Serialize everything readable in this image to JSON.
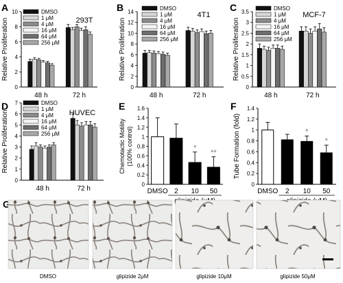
{
  "legend_labels": [
    "DMSO",
    "1 μM",
    "4 μM",
    "16 μM",
    "64 μM",
    "256 μM"
  ],
  "dose_colors": [
    "#111111",
    "#d6d6d6",
    "#8c8c8c",
    "#f5f5f5",
    "#6e6e6e",
    "#a8a8a8"
  ],
  "chart_data": [
    {
      "panel": "A",
      "type": "bar",
      "title": "293T",
      "ylabel": "Relative Proliferation",
      "categories": [
        "48 h",
        "72 h"
      ],
      "ylim": [
        0,
        10
      ],
      "yticks": [
        0,
        2,
        4,
        6,
        8,
        10
      ],
      "series": [
        {
          "name": "DMSO",
          "values": [
            3.4,
            7.9
          ],
          "errors": [
            0.3,
            0.4
          ]
        },
        {
          "name": "1 μM",
          "values": [
            3.7,
            7.6
          ],
          "errors": [
            0.2,
            0.3
          ]
        },
        {
          "name": "4 μM",
          "values": [
            3.6,
            8.0
          ],
          "errors": [
            0.2,
            0.3
          ]
        },
        {
          "name": "16 μM",
          "values": [
            3.3,
            7.5
          ],
          "errors": [
            0.2,
            0.3
          ]
        },
        {
          "name": "64 μM",
          "values": [
            3.2,
            7.6
          ],
          "errors": [
            0.2,
            0.4
          ]
        },
        {
          "name": "256 μM",
          "values": [
            2.9,
            7.0
          ],
          "errors": [
            0.2,
            0.3
          ]
        }
      ]
    },
    {
      "panel": "B",
      "type": "bar",
      "title": "4T1",
      "ylabel": "Relative Proliferation",
      "categories": [
        "48 h",
        "72 h"
      ],
      "ylim": [
        0,
        14
      ],
      "yticks": [
        0,
        2,
        4,
        6,
        8,
        10,
        12,
        14
      ],
      "series": [
        {
          "name": "DMSO",
          "values": [
            6.3,
            10.5
          ],
          "errors": [
            0.5,
            0.6
          ]
        },
        {
          "name": "1 μM",
          "values": [
            6.4,
            10.4
          ],
          "errors": [
            0.4,
            0.5
          ]
        },
        {
          "name": "4 μM",
          "values": [
            6.3,
            10.1
          ],
          "errors": [
            0.4,
            0.5
          ]
        },
        {
          "name": "16 μM",
          "values": [
            6.2,
            10.3
          ],
          "errors": [
            0.4,
            0.5
          ]
        },
        {
          "name": "64 μM",
          "values": [
            6.1,
            9.9
          ],
          "errors": [
            0.4,
            0.5
          ]
        },
        {
          "name": "256 μM",
          "values": [
            5.9,
            10.0
          ],
          "errors": [
            0.4,
            0.5
          ]
        }
      ]
    },
    {
      "panel": "C",
      "type": "bar",
      "title": "MCF-7",
      "ylabel": "Relative Proliferation",
      "categories": [
        "48 h",
        "72 h"
      ],
      "ylim": [
        0,
        3.5
      ],
      "yticks": [
        0,
        0.5,
        1,
        1.5,
        2,
        2.5,
        3,
        3.5
      ],
      "series": [
        {
          "name": "DMSO",
          "values": [
            1.8,
            2.6
          ],
          "errors": [
            0.2,
            0.2
          ]
        },
        {
          "name": "1 μM",
          "values": [
            1.75,
            2.6
          ],
          "errors": [
            0.15,
            0.2
          ]
        },
        {
          "name": "4 μM",
          "values": [
            1.7,
            2.5
          ],
          "errors": [
            0.15,
            0.2
          ]
        },
        {
          "name": "16 μM",
          "values": [
            1.8,
            2.6
          ],
          "errors": [
            0.15,
            0.2
          ]
        },
        {
          "name": "64 μM",
          "values": [
            1.8,
            2.7
          ],
          "errors": [
            0.15,
            0.25
          ]
        },
        {
          "name": "256 μM",
          "values": [
            1.75,
            2.55
          ],
          "errors": [
            0.15,
            0.2
          ]
        }
      ]
    },
    {
      "panel": "D",
      "type": "bar",
      "title": "HUVEC",
      "ylabel": "Relative Proliferation",
      "categories": [
        "48 h",
        "72 h"
      ],
      "ylim": [
        0,
        7
      ],
      "yticks": [
        0,
        1,
        2,
        3,
        4,
        5,
        6,
        7
      ],
      "series": [
        {
          "name": "DMSO",
          "values": [
            2.8,
            5.6
          ],
          "errors": [
            0.3,
            0.4
          ]
        },
        {
          "name": "1 μM",
          "values": [
            3.1,
            5.0
          ],
          "errors": [
            0.3,
            0.4
          ]
        },
        {
          "name": "4 μM",
          "values": [
            3.0,
            4.9
          ],
          "errors": [
            0.2,
            0.3
          ]
        },
        {
          "name": "16 μM",
          "values": [
            2.9,
            5.0
          ],
          "errors": [
            0.2,
            0.3
          ]
        },
        {
          "name": "64 μM",
          "values": [
            3.0,
            5.0
          ],
          "errors": [
            0.2,
            0.3
          ]
        },
        {
          "name": "256 μM",
          "values": [
            3.2,
            4.8
          ],
          "errors": [
            0.2,
            0.3
          ]
        }
      ]
    },
    {
      "panel": "E",
      "type": "bar",
      "title": "",
      "ylabel": "Chemotactic Motility (100% control)",
      "xlabel": "glipizide (μM)",
      "categories": [
        "DMSO",
        "2",
        "10",
        "50"
      ],
      "values": [
        1.0,
        0.97,
        0.46,
        0.36
      ],
      "errors": [
        0.4,
        0.3,
        0.22,
        0.22
      ],
      "fills": [
        "#ffffff",
        "#000000",
        "#000000",
        "#000000"
      ],
      "significance": [
        "",
        "",
        "*",
        "**"
      ],
      "ylim": [
        0,
        1.6
      ],
      "yticks": [
        0,
        0.2,
        0.4,
        0.6,
        0.8,
        1.0,
        1.2,
        1.4,
        1.6
      ]
    },
    {
      "panel": "F",
      "type": "bar",
      "title": "",
      "ylabel": "Tube Formation (fold)",
      "xlabel": "glipizide (μM)",
      "categories": [
        "DMSO",
        "2",
        "10",
        "50"
      ],
      "values": [
        1.0,
        0.82,
        0.79,
        0.58
      ],
      "errors": [
        0.14,
        0.1,
        0.1,
        0.14
      ],
      "fills": [
        "#ffffff",
        "#000000",
        "#000000",
        "#000000"
      ],
      "significance": [
        "",
        "",
        "*",
        "*"
      ],
      "ylim": [
        0,
        1.4
      ],
      "yticks": [
        0,
        0.2,
        0.4,
        0.6,
        0.8,
        1.0,
        1.2,
        1.4
      ]
    }
  ],
  "panel_g": {
    "letter": "G",
    "captions": [
      "DMSO",
      "glipizide 2μM",
      "glipizide 10μM",
      "glipizide 50μM"
    ]
  }
}
